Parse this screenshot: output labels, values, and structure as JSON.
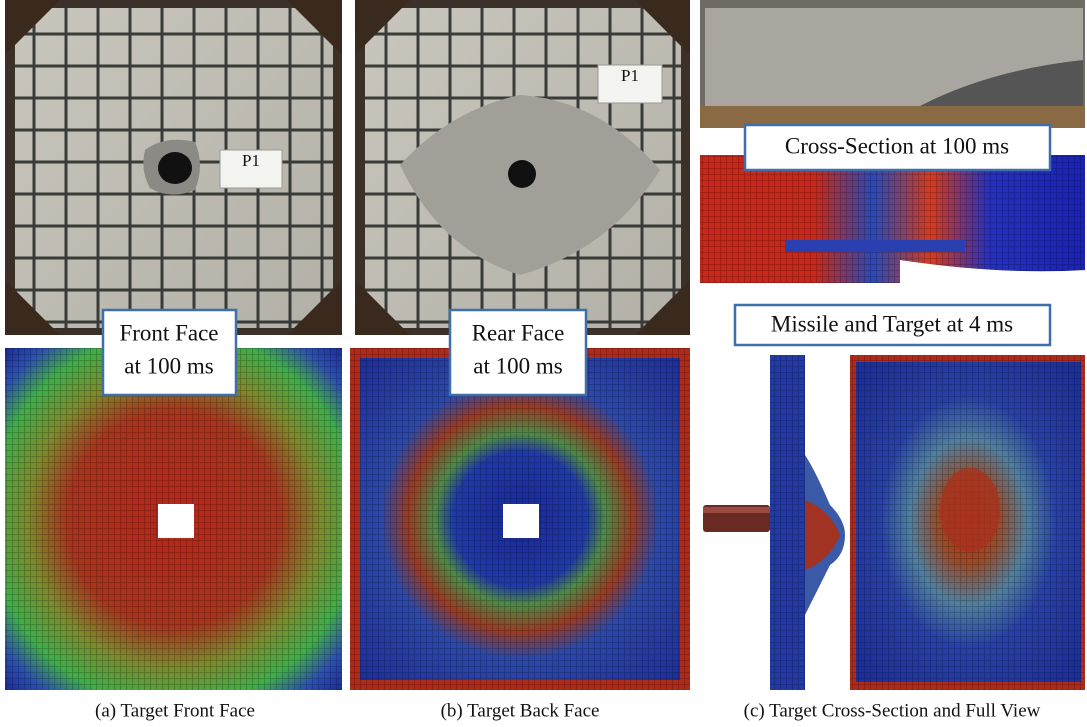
{
  "panels": [
    {
      "caption": "(a) Target Front Face",
      "photo_label": "P1",
      "overlay_label": [
        "Front Face",
        "at 100 ms"
      ]
    },
    {
      "caption": "(b) Target Back Face",
      "photo_label": "P1",
      "overlay_label": [
        "Rear Face",
        "at 100 ms"
      ]
    },
    {
      "caption": "(c) Target Cross-Section and Full View",
      "overlay_labels": [
        "Cross-Section at 100 ms",
        "Missile and Target at 4 ms"
      ]
    }
  ]
}
